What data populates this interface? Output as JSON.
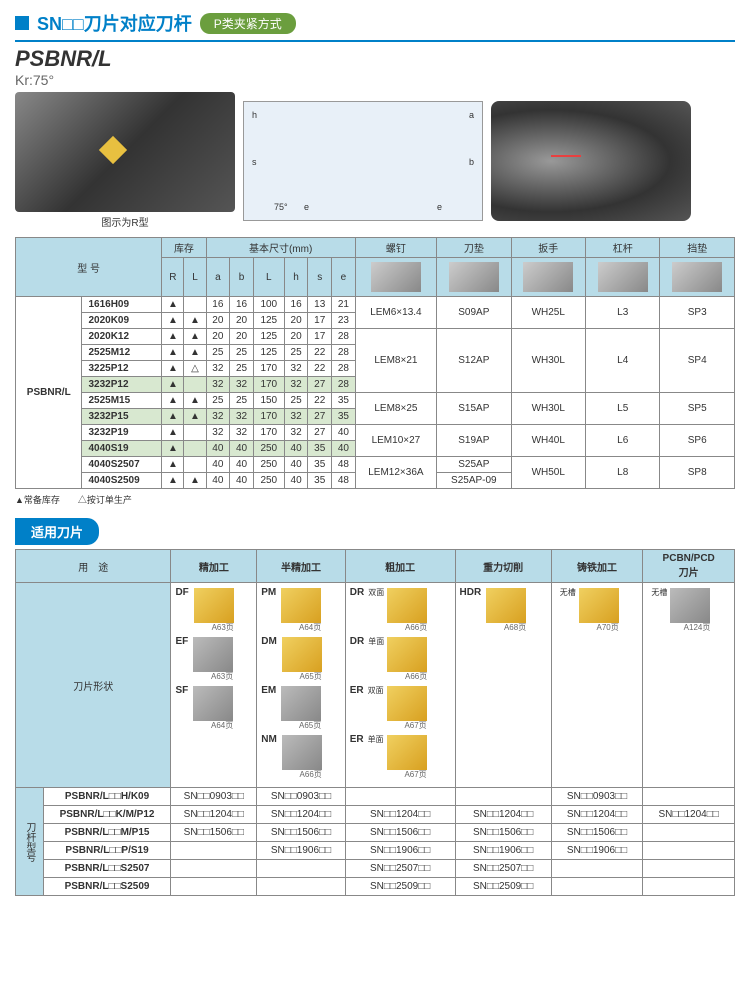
{
  "header": {
    "title": "SN□□刀片对应刀杆",
    "pill": "P类夹紧方式"
  },
  "model": {
    "name": "PSBNR/L",
    "kr": "Kr:75°",
    "imgNote": "图示为R型"
  },
  "mainTable": {
    "groupHeaders": [
      "型 号",
      "库存",
      "基本尺寸(mm)",
      "螺钉",
      "刀垫",
      "扳手",
      "杠杆",
      "挡垫"
    ],
    "subHeaders": [
      "R",
      "L",
      "a",
      "b",
      "L",
      "h",
      "s",
      "e"
    ],
    "modelLabel": "PSBNR/L",
    "rows": [
      {
        "code": "1616H09",
        "r": "▲",
        "l": "",
        "a": "16",
        "b": "16",
        "ll": "100",
        "h": "16",
        "s": "13",
        "e": "21",
        "screw": "LEM6×13.4",
        "pad": "S09AP",
        "wrench": "WH25L",
        "lever": "L3",
        "shim": "SP3",
        "rs": 1,
        "groupRs": 2
      },
      {
        "code": "2020K09",
        "r": "▲",
        "l": "▲",
        "a": "20",
        "b": "20",
        "ll": "125",
        "h": "20",
        "s": "17",
        "e": "23"
      },
      {
        "code": "2020K12",
        "r": "▲",
        "l": "▲",
        "a": "20",
        "b": "20",
        "ll": "125",
        "h": "20",
        "s": "17",
        "e": "28",
        "screw": "LEM8×21",
        "pad": "S12AP",
        "wrench": "WH30L",
        "lever": "L4",
        "shim": "SP4",
        "groupRs": 4
      },
      {
        "code": "2525M12",
        "r": "▲",
        "l": "▲",
        "a": "25",
        "b": "25",
        "ll": "125",
        "h": "25",
        "s": "22",
        "e": "28"
      },
      {
        "code": "3225P12",
        "r": "▲",
        "l": "△",
        "a": "32",
        "b": "25",
        "ll": "170",
        "h": "32",
        "s": "22",
        "e": "28"
      },
      {
        "code": "3232P12",
        "r": "▲",
        "l": "",
        "a": "32",
        "b": "32",
        "ll": "170",
        "h": "32",
        "s": "27",
        "e": "28",
        "hl": true
      },
      {
        "code": "2525M15",
        "r": "▲",
        "l": "▲",
        "a": "25",
        "b": "25",
        "ll": "150",
        "h": "25",
        "s": "22",
        "e": "35",
        "screw": "LEM8×25",
        "pad": "S15AP",
        "wrench": "WH30L",
        "lever": "L5",
        "shim": "SP5",
        "groupRs": 2
      },
      {
        "code": "3232P15",
        "r": "▲",
        "l": "▲",
        "a": "32",
        "b": "32",
        "ll": "170",
        "h": "32",
        "s": "27",
        "e": "35",
        "hl": true
      },
      {
        "code": "3232P19",
        "r": "▲",
        "l": "",
        "a": "32",
        "b": "32",
        "ll": "170",
        "h": "32",
        "s": "27",
        "e": "40",
        "screw": "LEM10×27",
        "pad": "S19AP",
        "wrench": "WH40L",
        "lever": "L6",
        "shim": "SP6",
        "groupRs": 2
      },
      {
        "code": "4040S19",
        "r": "▲",
        "l": "",
        "a": "40",
        "b": "40",
        "ll": "250",
        "h": "40",
        "s": "35",
        "e": "40",
        "hl": true
      },
      {
        "code": "4040S2507",
        "r": "▲",
        "l": "",
        "a": "40",
        "b": "40",
        "ll": "250",
        "h": "40",
        "s": "35",
        "e": "48",
        "screw": "LEM12×36A",
        "pad": "S25AP",
        "wrench": "WH50L",
        "lever": "L8",
        "shim": "SP8",
        "groupRs": 2,
        "padOnly": true
      },
      {
        "code": "4040S2509",
        "r": "▲",
        "l": "▲",
        "a": "40",
        "b": "40",
        "ll": "250",
        "h": "40",
        "s": "35",
        "e": "48",
        "pad": "S25AP-09",
        "padRowOnly": true
      }
    ],
    "footNote": "▲常备库存　　△按订单生产"
  },
  "insertSection": {
    "title": "适用刀片",
    "usageLabel": "用　途",
    "usages": [
      "精加工",
      "半精加工",
      "粗加工",
      "重力切削",
      "铸铁加工",
      "PCBN/PCD\n刀片"
    ],
    "shapeLabel": "刀片形状",
    "shapes": [
      [
        {
          "c": "DF",
          "y": true,
          "p": "A63页"
        },
        {
          "c": "PM",
          "y": true,
          "p": "A64页"
        },
        {
          "c": "DR",
          "sub": "双面",
          "y": true,
          "p": "A66页"
        },
        {
          "c": "HDR",
          "y": true,
          "p": "A68页"
        },
        {
          "c": "",
          "sub": "无槽",
          "y": true,
          "p": "A70页"
        },
        {
          "c": "",
          "sub": "无槽",
          "y": false,
          "p": "A124页"
        }
      ],
      [
        {
          "c": "EF",
          "y": false,
          "p": "A63页"
        },
        {
          "c": "DM",
          "y": true,
          "p": "A65页"
        },
        {
          "c": "DR",
          "sub": "单面",
          "y": true,
          "p": "A66页"
        },
        null,
        null,
        null
      ],
      [
        {
          "c": "SF",
          "y": false,
          "p": "A64页"
        },
        {
          "c": "EM",
          "y": false,
          "p": "A65页"
        },
        {
          "c": "ER",
          "sub": "双面",
          "y": true,
          "p": "A67页"
        },
        null,
        null,
        null
      ],
      [
        null,
        {
          "c": "NM",
          "y": false,
          "p": "A66页"
        },
        {
          "c": "ER",
          "sub": "单面",
          "y": true,
          "p": "A67页"
        },
        null,
        null,
        null
      ]
    ],
    "bottomLabel": "刀杆型号",
    "bottomRows": [
      {
        "m": "PSBNR/L□□H/K09",
        "v": [
          "SN□□0903□□",
          "SN□□0903□□",
          "",
          "",
          "SN□□0903□□",
          ""
        ]
      },
      {
        "m": "PSBNR/L□□K/M/P12",
        "v": [
          "SN□□1204□□",
          "SN□□1204□□",
          "SN□□1204□□",
          "SN□□1204□□",
          "SN□□1204□□",
          "SN□□1204□□"
        ]
      },
      {
        "m": "PSBNR/L□□M/P15",
        "v": [
          "SN□□1506□□",
          "SN□□1506□□",
          "SN□□1506□□",
          "SN□□1506□□",
          "SN□□1506□□",
          ""
        ]
      },
      {
        "m": "PSBNR/L□□P/S19",
        "v": [
          "",
          "SN□□1906□□",
          "SN□□1906□□",
          "SN□□1906□□",
          "SN□□1906□□",
          ""
        ]
      },
      {
        "m": "PSBNR/L□□S2507",
        "v": [
          "",
          "",
          "SN□□2507□□",
          "SN□□2507□□",
          "",
          ""
        ]
      },
      {
        "m": "PSBNR/L□□S2509",
        "v": [
          "",
          "",
          "SN□□2509□□",
          "SN□□2509□□",
          "",
          ""
        ]
      }
    ]
  }
}
